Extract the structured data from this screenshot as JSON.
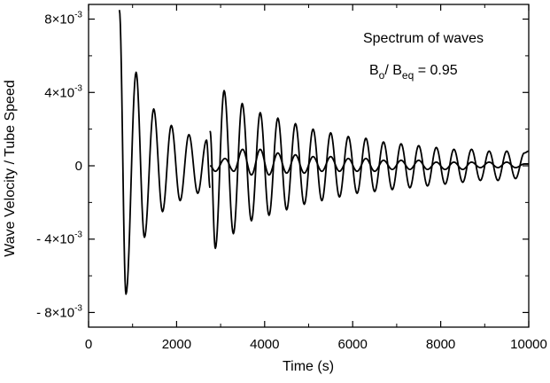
{
  "chart_data": {
    "type": "line",
    "xlabel": "Time  (s)",
    "ylabel": "Wave Velocity / Tube Speed",
    "xlim": [
      0,
      10000
    ],
    "ylim": [
      -0.0088,
      0.0088
    ],
    "grid": false,
    "x_ticks": [
      0,
      2000,
      4000,
      6000,
      8000,
      10000
    ],
    "x_tick_labels": [
      "0",
      "2000",
      "4000",
      "6000",
      "8000",
      "10000"
    ],
    "y_ticks": [
      {
        "value": 0.008,
        "base": "8×10",
        "exp": "-3"
      },
      {
        "value": 0.004,
        "base": "4×10",
        "exp": "-3"
      },
      {
        "value": 0,
        "base": "0",
        "exp": ""
      },
      {
        "value": -0.004,
        "base": "- 4×10",
        "exp": "-3"
      },
      {
        "value": -0.008,
        "base": "- 8×10",
        "exp": "-3"
      }
    ],
    "annotation": {
      "title": "Spectrum of waves",
      "b_main": "B",
      "b_sub": "o",
      "slash": "/ B",
      "beq_sub": "eq",
      "value": " = 0.95"
    },
    "series": [
      {
        "start_time": 700,
        "start_value": 0.0085,
        "extrema": [
          [
            850,
            -0.007
          ],
          [
            1080,
            0.0051
          ],
          [
            1270,
            -0.0039
          ],
          [
            1480,
            0.0031
          ],
          [
            1680,
            -0.0025
          ],
          [
            1880,
            0.0022
          ],
          [
            2080,
            -0.0019
          ],
          [
            2280,
            0.0017
          ],
          [
            2480,
            -0.0015
          ],
          [
            2680,
            0.0014
          ],
          [
            2760,
            -0.0012
          ]
        ]
      },
      {
        "start_time": 2760,
        "start_value": 0.0019,
        "extrema": [
          [
            2880,
            -0.0045
          ],
          [
            3080,
            0.0041
          ],
          [
            3290,
            -0.0037
          ],
          [
            3490,
            0.0034
          ],
          [
            3700,
            -0.003
          ],
          [
            3900,
            0.0029
          ],
          [
            4100,
            -0.0027
          ],
          [
            4300,
            0.0026
          ],
          [
            4500,
            -0.0024
          ],
          [
            4700,
            0.0023
          ],
          [
            4900,
            -0.0021
          ],
          [
            5100,
            0.002
          ],
          [
            5300,
            -0.0019
          ],
          [
            5500,
            0.0018
          ],
          [
            5700,
            -0.0017
          ],
          [
            5900,
            0.0016
          ],
          [
            6100,
            -0.0015
          ],
          [
            6300,
            0.0015
          ],
          [
            6500,
            -0.0014
          ],
          [
            6700,
            0.0013
          ],
          [
            6900,
            -0.0013
          ],
          [
            7100,
            0.0012
          ],
          [
            7300,
            -0.0012
          ],
          [
            7500,
            0.0011
          ],
          [
            7700,
            -0.0011
          ],
          [
            7900,
            0.001
          ],
          [
            8100,
            -0.001
          ],
          [
            8300,
            0.0009
          ],
          [
            8500,
            -0.0009
          ],
          [
            8700,
            0.0009
          ],
          [
            8900,
            -0.0008
          ],
          [
            9100,
            0.0008
          ],
          [
            9300,
            -0.0008
          ],
          [
            9500,
            0.0008
          ],
          [
            9700,
            -0.0007
          ],
          [
            9900,
            0.0007
          ],
          [
            10000,
            0.0008
          ]
        ]
      },
      {
        "start_time": 2760,
        "start_value": 0.0,
        "extrema": [
          [
            2880,
            -0.0003
          ],
          [
            3100,
            0.0004
          ],
          [
            3300,
            -0.0003
          ],
          [
            3500,
            0.0009
          ],
          [
            3700,
            -0.0005
          ],
          [
            3900,
            0.0009
          ],
          [
            4100,
            -0.0005
          ],
          [
            4300,
            0.0007
          ],
          [
            4500,
            -0.0004
          ],
          [
            4700,
            0.0006
          ],
          [
            4900,
            -0.0004
          ],
          [
            5100,
            0.0005
          ],
          [
            5300,
            -0.0003
          ],
          [
            5500,
            0.0005
          ],
          [
            5700,
            -0.0003
          ],
          [
            5900,
            0.0004
          ],
          [
            6100,
            -0.0003
          ],
          [
            6300,
            0.0004
          ],
          [
            6500,
            -0.0003
          ],
          [
            6700,
            0.0003
          ],
          [
            6900,
            -0.0002
          ],
          [
            7100,
            0.0003
          ],
          [
            7300,
            -0.0002
          ],
          [
            7500,
            0.0003
          ],
          [
            7700,
            -0.0002
          ],
          [
            7900,
            0.0002
          ],
          [
            8100,
            -0.0002
          ],
          [
            8300,
            0.0002
          ],
          [
            8500,
            -0.0002
          ],
          [
            8700,
            0.0002
          ],
          [
            8900,
            -0.0001
          ],
          [
            9100,
            0.0002
          ],
          [
            9300,
            -0.0001
          ],
          [
            9500,
            0.0002
          ],
          [
            9700,
            -0.0001
          ],
          [
            9900,
            0.0001
          ],
          [
            10000,
            0.0001
          ]
        ]
      }
    ]
  }
}
